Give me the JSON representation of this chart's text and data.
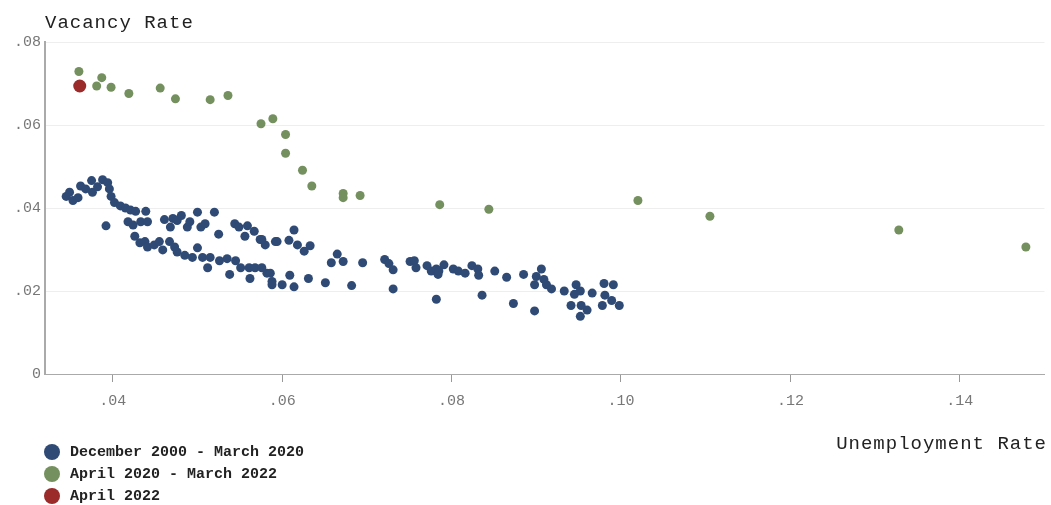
{
  "chart_data": {
    "type": "scatter",
    "xlabel": "Unemployment Rate",
    "ylabel": "Vacancy Rate",
    "xlim": [
      0.032,
      0.15
    ],
    "ylim": [
      0,
      0.08
    ],
    "xticks": [
      {
        "value": 0.04,
        "label": ".04"
      },
      {
        "value": 0.06,
        "label": ".06"
      },
      {
        "value": 0.08,
        "label": ".08"
      },
      {
        "value": 0.1,
        "label": ".10"
      },
      {
        "value": 0.12,
        "label": ".12"
      },
      {
        "value": 0.14,
        "label": ".14"
      }
    ],
    "yticks": [
      {
        "value": 0,
        "label": "0"
      },
      {
        "value": 0.02,
        "label": ".02"
      },
      {
        "value": 0.04,
        "label": ".04"
      },
      {
        "value": 0.06,
        "label": ".06"
      },
      {
        "value": 0.08,
        "label": ".08"
      }
    ],
    "grid": "y",
    "legend": "bottom left",
    "marker": "circle",
    "series": [
      {
        "name": "December 2000 - March 2020",
        "color": "#2e4a75",
        "x": [
          0.0345,
          0.0349,
          0.0353,
          0.0359,
          0.0362,
          0.0368,
          0.0375,
          0.0376,
          0.0382,
          0.0388,
          0.0394,
          0.0396,
          0.0398,
          0.0392,
          0.0402,
          0.0409,
          0.0415,
          0.0421,
          0.0427,
          0.0418,
          0.0424,
          0.0426,
          0.0433,
          0.0439,
          0.0441,
          0.0432,
          0.0438,
          0.0441,
          0.0449,
          0.0455,
          0.0459,
          0.0461,
          0.0468,
          0.0471,
          0.0476,
          0.0481,
          0.0488,
          0.0491,
          0.05,
          0.0504,
          0.0509,
          0.052,
          0.0525,
          0.0467,
          0.0473,
          0.0476,
          0.0485,
          0.0494,
          0.05,
          0.0506,
          0.0512,
          0.0515,
          0.0526,
          0.0535,
          0.0538,
          0.0544,
          0.0545,
          0.0549,
          0.0551,
          0.0556,
          0.0559,
          0.0561,
          0.0567,
          0.0568,
          0.0562,
          0.0574,
          0.058,
          0.0582,
          0.0588,
          0.0592,
          0.0576,
          0.0594,
          0.0608,
          0.0614,
          0.0618,
          0.0626,
          0.0633,
          0.0576,
          0.0586,
          0.0588,
          0.06,
          0.0609,
          0.0614,
          0.0631,
          0.0651,
          0.0658,
          0.0665,
          0.0672,
          0.0682,
          0.0695,
          0.0721,
          0.0726,
          0.0731,
          0.0731,
          0.0751,
          0.0756,
          0.0758,
          0.0771,
          0.0776,
          0.0782,
          0.0784,
          0.0782,
          0.0791,
          0.0802,
          0.0785,
          0.0808,
          0.0816,
          0.0824,
          0.0831,
          0.0832,
          0.0836,
          0.0851,
          0.0865,
          0.0873,
          0.0885,
          0.0898,
          0.0898,
          0.09,
          0.0906,
          0.0909,
          0.0912,
          0.0918,
          0.0933,
          0.0941,
          0.0945,
          0.0947,
          0.0952,
          0.0952,
          0.0953,
          0.096,
          0.0966,
          0.0978,
          0.098,
          0.0981,
          0.0991,
          0.0989,
          0.0998
        ],
        "values": [
          0.0428,
          0.0438,
          0.0418,
          0.0425,
          0.0453,
          0.0446,
          0.0466,
          0.0438,
          0.0451,
          0.0468,
          0.0461,
          0.0446,
          0.0428,
          0.0357,
          0.0413,
          0.0405,
          0.04,
          0.0395,
          0.0392,
          0.0367,
          0.0359,
          0.0332,
          0.0367,
          0.0392,
          0.0367,
          0.0316,
          0.0319,
          0.0306,
          0.0311,
          0.0319,
          0.0299,
          0.0372,
          0.0354,
          0.0375,
          0.037,
          0.0382,
          0.0354,
          0.0367,
          0.039,
          0.0354,
          0.0362,
          0.039,
          0.0337,
          0.0319,
          0.0306,
          0.0294,
          0.0286,
          0.0281,
          0.0304,
          0.0281,
          0.0256,
          0.0281,
          0.0273,
          0.0278,
          0.024,
          0.0362,
          0.0273,
          0.0354,
          0.0256,
          0.0332,
          0.0357,
          0.0256,
          0.0344,
          0.0256,
          0.023,
          0.0324,
          0.0311,
          0.0243,
          0.0223,
          0.0319,
          0.0324,
          0.0319,
          0.0322,
          0.0347,
          0.0311,
          0.0296,
          0.0309,
          0.0256,
          0.0243,
          0.0215,
          0.0215,
          0.0238,
          0.021,
          0.023,
          0.022,
          0.0268,
          0.0289,
          0.0271,
          0.0213,
          0.0268,
          0.0276,
          0.0266,
          0.0251,
          0.0205,
          0.0271,
          0.0273,
          0.0256,
          0.0261,
          0.0248,
          0.0253,
          0.024,
          0.018,
          0.0263,
          0.0253,
          0.0248,
          0.0248,
          0.0243,
          0.0261,
          0.0253,
          0.0238,
          0.019,
          0.0248,
          0.0233,
          0.017,
          0.024,
          0.0152,
          0.0215,
          0.0235,
          0.0253,
          0.0228,
          0.0215,
          0.0205,
          0.02,
          0.0165,
          0.0192,
          0.0215,
          0.02,
          0.0139,
          0.0165,
          0.0154,
          0.0195,
          0.0165,
          0.0218,
          0.019,
          0.0215,
          0.0177,
          0.0165
        ]
      },
      {
        "name": "April 2020 - March 2022",
        "color": "#74905e",
        "x": [
          0.036,
          0.0381,
          0.0387,
          0.0398,
          0.0419,
          0.0456,
          0.0474,
          0.0515,
          0.0536,
          0.0575,
          0.0589,
          0.0604,
          0.0604,
          0.0624,
          0.0635,
          0.0672,
          0.0672,
          0.0692,
          0.0786,
          0.0844,
          0.102,
          0.1105,
          0.1328,
          0.1478
        ],
        "values": [
          0.0729,
          0.0694,
          0.0714,
          0.0691,
          0.0676,
          0.0689,
          0.0663,
          0.0661,
          0.0671,
          0.0603,
          0.0615,
          0.0577,
          0.0532,
          0.0491,
          0.0453,
          0.0435,
          0.0425,
          0.043,
          0.0408,
          0.0397,
          0.0418,
          0.038,
          0.0347,
          0.0306
        ]
      },
      {
        "name": "April 2022",
        "color": "#9b2a2a",
        "x": [
          0.0361
        ],
        "values": [
          0.0694
        ]
      }
    ]
  }
}
